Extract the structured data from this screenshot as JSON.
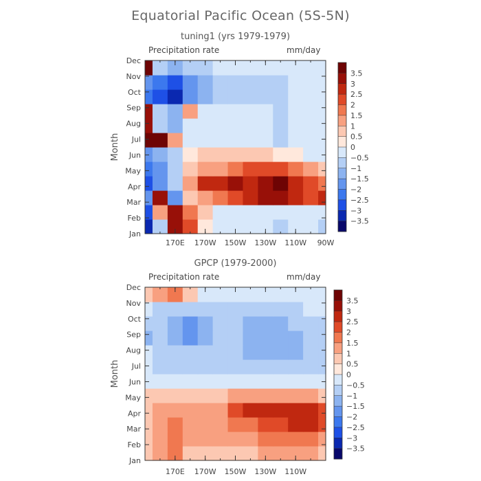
{
  "main_title": "Equatorial Pacific Ocean (5S-5N)",
  "colors": {
    "scale": [
      "#08086b",
      "#0a28b0",
      "#1e50e6",
      "#3c78ee",
      "#6495ee",
      "#8cb3f0",
      "#b4cff5",
      "#d8e8fa",
      "#ffe8dc",
      "#fcc8b2",
      "#f8a080",
      "#f07850",
      "#e04a28",
      "#c02810",
      "#981008",
      "#6e0404"
    ]
  },
  "chart_data": [
    {
      "type": "heatmap",
      "title": "tuning1 (yrs 1979-1979)",
      "variable_label": "Precipitation rate",
      "units_label": "mm/day",
      "ylabel": "Month",
      "y_ticks": [
        "Jan",
        "Feb",
        "Mar",
        "Apr",
        "May",
        "Jun",
        "Jul",
        "Aug",
        "Sep",
        "Oct",
        "Nov",
        "Dec"
      ],
      "x_ticks": [
        "170E",
        "170W",
        "150W",
        "130W",
        "110W",
        "90W"
      ],
      "x_tick_lon": [
        170,
        190,
        210,
        230,
        250,
        270
      ],
      "xlim_lon": [
        150,
        270
      ],
      "colorbar_labels": [
        "3.5",
        "3",
        "2.5",
        "2",
        "1.5",
        "1",
        "0.5",
        "0",
        "-0.5",
        "-1",
        "-1.5",
        "-2",
        "-2.5",
        "-3",
        "-3.5"
      ],
      "colorbar_levels": [
        3.5,
        3,
        2.5,
        2,
        1.5,
        1,
        0.5,
        0,
        -0.5,
        -1,
        -1.5,
        -2,
        -2.5,
        -3,
        -3.5
      ],
      "lon": [
        150,
        160,
        170,
        180,
        190,
        200,
        210,
        220,
        230,
        240,
        250,
        260,
        270
      ],
      "values": [
        [
          -3.5,
          -1,
          3,
          2,
          0,
          -0.5,
          -0.5,
          -0.5,
          -0.5,
          -1,
          -0.5,
          -0.5,
          -1
        ],
        [
          -3,
          1,
          3,
          1.5,
          0.5,
          -0.5,
          -0.5,
          -0.5,
          -0.5,
          -0.5,
          -0.5,
          -0.5,
          -0.5
        ],
        [
          -2,
          3,
          -2,
          0.5,
          1,
          1.5,
          2,
          2.5,
          3,
          3,
          2.5,
          2,
          2.5
        ],
        [
          -3,
          -2,
          -1,
          1,
          2.5,
          2.5,
          3,
          2.5,
          3,
          3.5,
          2.5,
          2,
          1.5
        ],
        [
          -2.5,
          -2,
          -1,
          0.5,
          1,
          1,
          1.5,
          2,
          2,
          2,
          1.5,
          1,
          0.5
        ],
        [
          -2,
          -1.5,
          -1,
          0,
          0.5,
          0.5,
          0.5,
          0.5,
          0.5,
          0,
          0,
          -0.5,
          -0.5
        ],
        [
          3.5,
          3.5,
          1,
          -0.5,
          -0.5,
          -0.5,
          -0.5,
          -0.5,
          -0.5,
          -1,
          -0.5,
          -0.5,
          -0.5
        ],
        [
          3,
          -1,
          -1.5,
          -0.5,
          -0.5,
          -0.5,
          -0.5,
          -0.5,
          -0.5,
          -1,
          -0.5,
          -0.5,
          -0.5
        ],
        [
          3,
          -1,
          -1.5,
          1,
          -0.5,
          -0.5,
          -0.5,
          -0.5,
          -0.5,
          -1,
          -0.5,
          -0.5,
          -0.5
        ],
        [
          -2.5,
          -3,
          -3.5,
          -2,
          -1.5,
          -1,
          -1,
          -1,
          -1,
          -1,
          -0.5,
          -0.5,
          -0.5
        ],
        [
          -2,
          -2.5,
          -3,
          -2,
          -1.5,
          -1,
          -1,
          -1,
          -1,
          -1,
          -0.5,
          -0.5,
          -0.5
        ],
        [
          3.5,
          -1,
          -1.5,
          -1,
          -1,
          -0.5,
          -0.5,
          -0.5,
          -0.5,
          -0.5,
          -0.5,
          -0.5,
          -0.5
        ]
      ]
    },
    {
      "type": "heatmap",
      "title": "GPCP (1979-2000)",
      "variable_label": "Precipitation rate",
      "units_label": "mm/day",
      "ylabel": "Month",
      "y_ticks": [
        "Jan",
        "Feb",
        "Mar",
        "Apr",
        "May",
        "Jun",
        "Jul",
        "Aug",
        "Sep",
        "Oct",
        "Nov",
        "Dec"
      ],
      "x_ticks": [
        "170E",
        "170W",
        "150W",
        "130W",
        "110W"
      ],
      "x_tick_lon": [
        170,
        190,
        210,
        230,
        250
      ],
      "xlim_lon": [
        150,
        270
      ],
      "colorbar_labels": [
        "3.5",
        "3",
        "2.5",
        "2",
        "1.5",
        "1",
        "0.5",
        "0",
        "-0.5",
        "-1",
        "-1.5",
        "-2",
        "-2.5",
        "-3",
        "-3.5"
      ],
      "colorbar_levels": [
        3.5,
        3,
        2.5,
        2,
        1.5,
        1,
        0.5,
        0,
        -0.5,
        -1,
        -1.5,
        -2,
        -2.5,
        -3,
        -3.5
      ],
      "lon": [
        150,
        160,
        170,
        180,
        190,
        200,
        210,
        220,
        230,
        240,
        250,
        260,
        270
      ],
      "values": [
        [
          0.5,
          1,
          1.5,
          0.5,
          0.5,
          0.5,
          0.5,
          0.5,
          1,
          1,
          1,
          1,
          0.5
        ],
        [
          0.5,
          1,
          1.5,
          1,
          1,
          1,
          1,
          1,
          1.5,
          1.5,
          1.5,
          1.5,
          1
        ],
        [
          0.5,
          1,
          1.5,
          1,
          1,
          1,
          1.5,
          1.5,
          2,
          2,
          2.5,
          2.5,
          2
        ],
        [
          0.5,
          1,
          1,
          1,
          1,
          1,
          2,
          2.5,
          2.5,
          2.5,
          2.5,
          2.5,
          2
        ],
        [
          0.5,
          0.5,
          0.5,
          0.5,
          0.5,
          0.5,
          1,
          1,
          1,
          1,
          1,
          1,
          0.5
        ],
        [
          -0.5,
          -0.5,
          -0.5,
          -0.5,
          -0.5,
          -0.5,
          -0.5,
          -0.5,
          -0.5,
          -0.5,
          -0.5,
          -0.5,
          -0.5
        ],
        [
          -0.5,
          -1,
          -1,
          -1,
          -1,
          -1,
          -1,
          -1,
          -1,
          -1,
          -1,
          -1,
          -1
        ],
        [
          -0.5,
          -1,
          -1,
          -1,
          -1,
          -1,
          -1,
          -1.5,
          -1.5,
          -1.5,
          -1.5,
          -1,
          -1
        ],
        [
          -1.5,
          -1,
          -1.5,
          -2,
          -1.5,
          -1,
          -1,
          -1.5,
          -1.5,
          -1.5,
          -1.5,
          -1,
          -1
        ],
        [
          -1,
          -1,
          -1.5,
          -2,
          -1.5,
          -1,
          -1,
          -1.5,
          -1.5,
          -1.5,
          -1,
          -1,
          -1
        ],
        [
          -0.5,
          -1,
          -1,
          -1,
          -1,
          -1,
          -1,
          -1,
          -1,
          -1,
          -1,
          -0.5,
          -0.5
        ],
        [
          0.5,
          1,
          1.5,
          0.5,
          -0.5,
          -0.5,
          -0.5,
          -0.5,
          -0.5,
          -0.5,
          -0.5,
          -0.5,
          -0.5
        ]
      ]
    }
  ]
}
